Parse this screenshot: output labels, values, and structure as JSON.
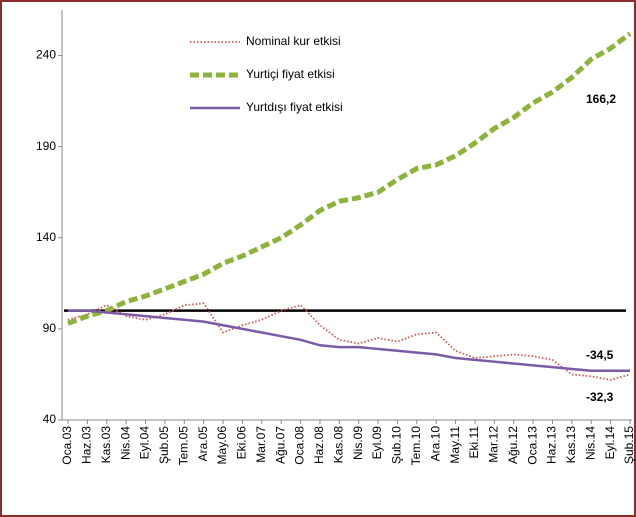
{
  "chart_data": {
    "type": "line",
    "categories": [
      "Oca.03",
      "Haz.03",
      "Kas.03",
      "Nis.04",
      "Eyl.04",
      "Şub.05",
      "Tem.05",
      "Ara.05",
      "May.06",
      "Eki.06",
      "Mar.07",
      "Ağu.07",
      "Oca.08",
      "Haz.08",
      "Kas.08",
      "Nis.09",
      "Eyl.09",
      "Şub.10",
      "Tem.10",
      "Ara.10",
      "May.11",
      "Eki.11",
      "Mar.12",
      "Ağu.12",
      "Oca.13",
      "Haz.13",
      "Kas.13",
      "Nis.14",
      "Eyl.14",
      "Şub.15"
    ],
    "series": [
      {
        "name": "Nominal kur etkisi",
        "color": "#d9534f",
        "line_style": "dotted",
        "values": [
          95,
          98,
          103,
          97,
          95,
          98,
          103,
          104,
          88,
          92,
          95,
          100,
          103,
          92,
          84,
          82,
          85,
          83,
          87,
          88,
          78,
          74,
          75,
          76,
          75,
          73,
          65,
          64,
          62,
          65
        ]
      },
      {
        "name": "Yurtiçi fiyat etkisi",
        "color": "#8db33a",
        "line_style": "dashed",
        "values": [
          93,
          97,
          100,
          105,
          108,
          112,
          116,
          120,
          126,
          130,
          135,
          140,
          147,
          155,
          160,
          162,
          165,
          172,
          178,
          180,
          185,
          192,
          200,
          206,
          214,
          220,
          228,
          238,
          244,
          252
        ]
      },
      {
        "name": "Yurtdışı fiyat etkisi",
        "color": "#7b5aa6",
        "line_style": "solid",
        "values": [
          100,
          100,
          99,
          98,
          97,
          96,
          95,
          94,
          92,
          90,
          88,
          86,
          84,
          81,
          80,
          80,
          79,
          78,
          77,
          76,
          74,
          73,
          72,
          71,
          70,
          69,
          68,
          67,
          67,
          67
        ]
      }
    ],
    "reference_line": 100,
    "annotations": [
      "166,2",
      "-34,5",
      "-32,3"
    ],
    "ylim": [
      40,
      265
    ],
    "yticks": [
      40,
      90,
      140,
      190,
      240
    ]
  }
}
